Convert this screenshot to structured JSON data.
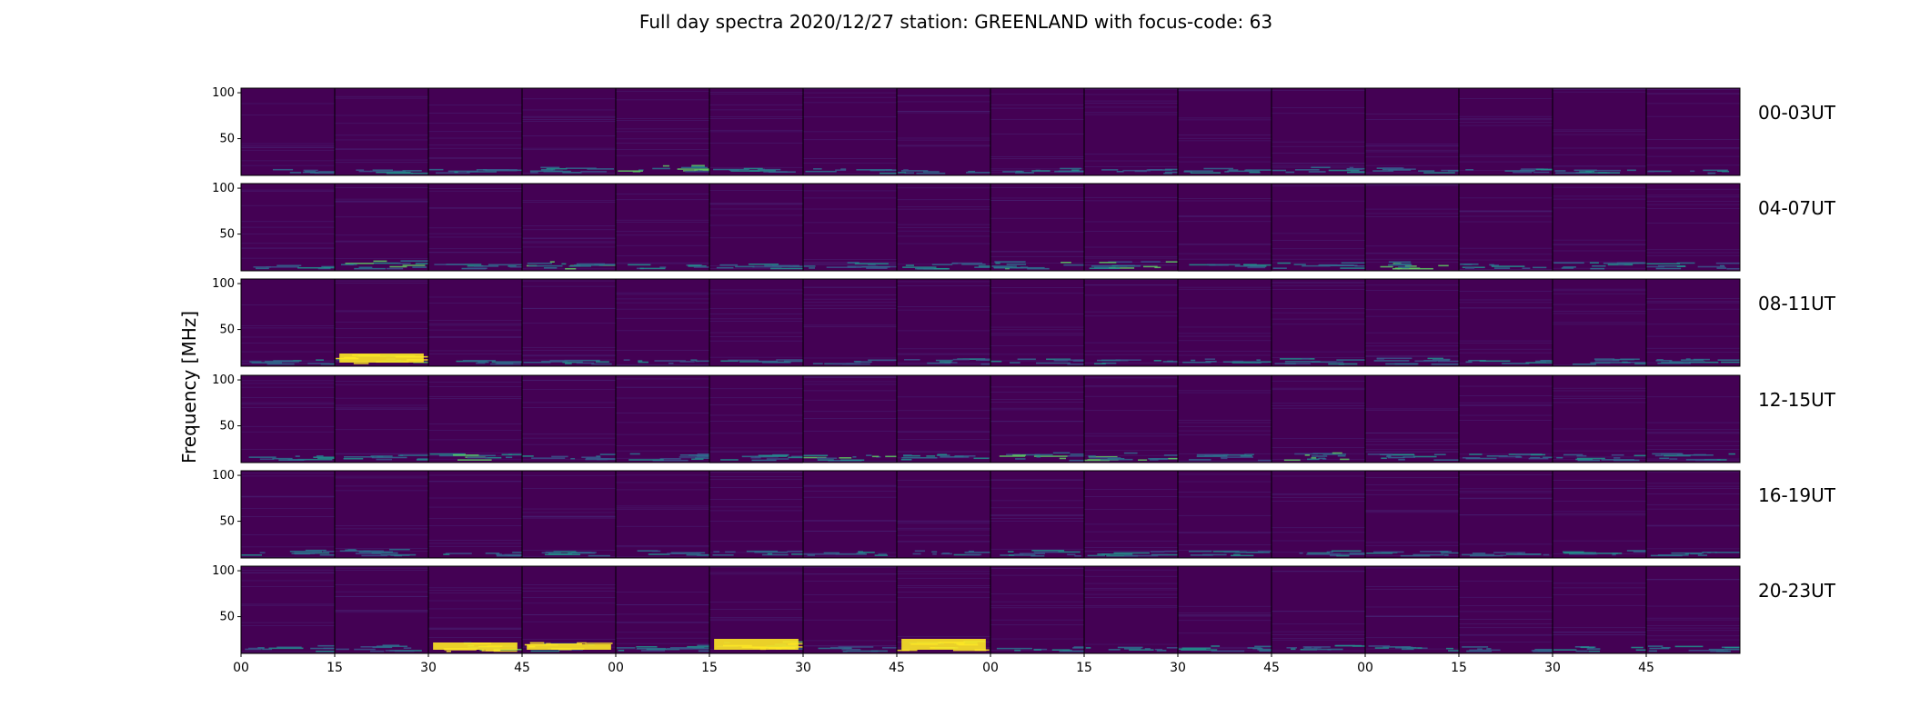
{
  "title": "Full day spectra 2020/12/27 station: GREENLAND with focus-code: 63",
  "colors": {
    "background_low": "#440154",
    "mid": "#21918c",
    "high": "#5ec962",
    "max": "#fde725"
  },
  "chart_data": {
    "type": "heatmap",
    "title": "Full day spectra 2020/12/27 station: GREENLAND with focus-code: 63",
    "ylabel": "Frequency [MHz]",
    "xlabel": "",
    "colormap": "viridis",
    "yticks": [
      100,
      50
    ],
    "ylim": [
      10,
      105
    ],
    "xtick_labels": [
      "00",
      "15",
      "30",
      "45",
      "00",
      "15",
      "30",
      "45",
      "00",
      "15",
      "30",
      "45",
      "00",
      "15",
      "30",
      "45"
    ],
    "panels_per_row": 16,
    "rows": [
      {
        "label": "00-03UT",
        "panel_activity": [
          0.15,
          0.3,
          0.35,
          0.5,
          0.75,
          0.3,
          0.25,
          0.15,
          0.35,
          0.3,
          0.35,
          0.45,
          0.4,
          0.25,
          0.35,
          0.2
        ]
      },
      {
        "label": "04-07UT",
        "panel_activity": [
          0.15,
          0.75,
          0.25,
          0.75,
          0.2,
          0.35,
          0.5,
          0.45,
          0.6,
          0.6,
          0.35,
          0.45,
          0.6,
          0.35,
          0.45,
          0.45
        ]
      },
      {
        "label": "08-11UT",
        "panel_activity": [
          0.3,
          0.95,
          0.2,
          0.3,
          0.3,
          0.25,
          0.3,
          0.45,
          0.35,
          0.2,
          0.35,
          0.4,
          0.45,
          0.2,
          0.35,
          0.45
        ]
      },
      {
        "label": "12-15UT",
        "panel_activity": [
          0.35,
          0.4,
          0.6,
          0.55,
          0.55,
          0.5,
          0.6,
          0.45,
          0.7,
          0.75,
          0.5,
          0.7,
          0.55,
          0.55,
          0.45,
          0.55
        ]
      },
      {
        "label": "16-19UT",
        "panel_activity": [
          0.4,
          0.55,
          0.3,
          0.3,
          0.35,
          0.3,
          0.3,
          0.35,
          0.45,
          0.4,
          0.4,
          0.35,
          0.3,
          0.3,
          0.4,
          0.3
        ]
      },
      {
        "label": "20-23UT",
        "panel_activity": [
          0.4,
          0.5,
          0.9,
          0.85,
          0.55,
          1.0,
          0.3,
          1.0,
          0.3,
          0.3,
          0.4,
          0.55,
          0.4,
          0.3,
          0.35,
          0.45
        ]
      }
    ]
  }
}
